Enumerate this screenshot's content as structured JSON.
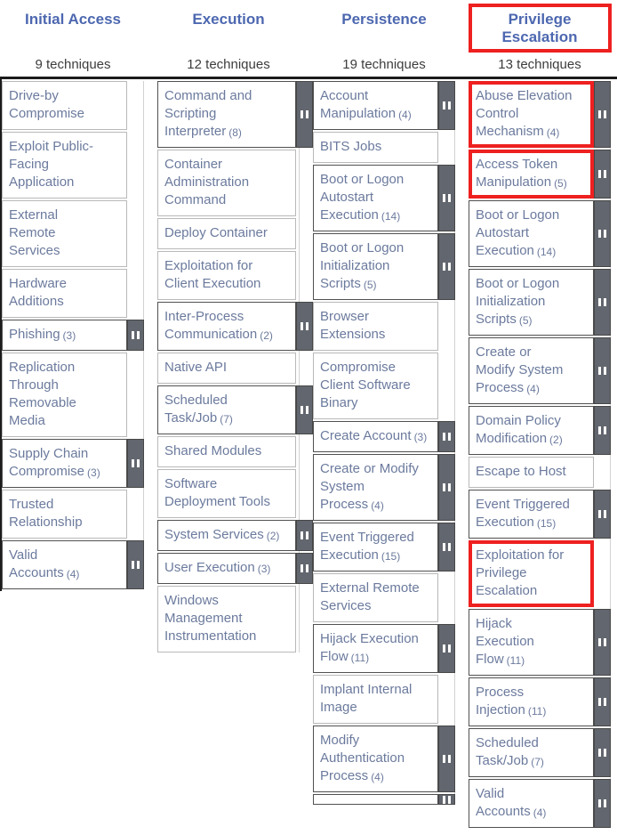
{
  "matrix": {
    "columns": [
      {
        "name": "Initial Access",
        "techniques_count_label": "9 techniques",
        "header_highlighted": false,
        "techniques": [
          {
            "label": "Drive-by Compromise"
          },
          {
            "label": "Exploit Public-Facing Application"
          },
          {
            "label": "External Remote Services"
          },
          {
            "label": "Hardware Additions"
          },
          {
            "label": "Phishing",
            "subtechnique_count": 3
          },
          {
            "label": "Replication Through Removable Media"
          },
          {
            "label": "Supply Chain Compromise",
            "subtechnique_count": 3
          },
          {
            "label": "Trusted Relationship"
          },
          {
            "label": "Valid Accounts",
            "subtechnique_count": 4
          }
        ]
      },
      {
        "name": "Execution",
        "techniques_count_label": "12 techniques",
        "header_highlighted": false,
        "techniques": [
          {
            "label": "Command and Scripting Interpreter",
            "subtechnique_count": 8
          },
          {
            "label": "Container Administration Command"
          },
          {
            "label": "Deploy Container"
          },
          {
            "label": "Exploitation for Client Execution"
          },
          {
            "label": "Inter-Process Communication",
            "subtechnique_count": 2
          },
          {
            "label": "Native API"
          },
          {
            "label": "Scheduled Task/Job",
            "subtechnique_count": 7
          },
          {
            "label": "Shared Modules"
          },
          {
            "label": "Software Deployment Tools"
          },
          {
            "label": "System Services",
            "subtechnique_count": 2
          },
          {
            "label": "User Execution",
            "subtechnique_count": 3
          },
          {
            "label": "Windows Management Instrumentation"
          }
        ]
      },
      {
        "name": "Persistence",
        "techniques_count_label": "19 techniques",
        "header_highlighted": false,
        "techniques": [
          {
            "label": "Account Manipulation",
            "subtechnique_count": 4
          },
          {
            "label": "BITS Jobs"
          },
          {
            "label": "Boot or Logon Autostart Execution",
            "subtechnique_count": 14
          },
          {
            "label": "Boot or Logon Initialization Scripts",
            "subtechnique_count": 5
          },
          {
            "label": "Browser Extensions"
          },
          {
            "label": "Compromise Client Software Binary"
          },
          {
            "label": "Create Account",
            "subtechnique_count": 3
          },
          {
            "label": "Create or Modify System Process",
            "subtechnique_count": 4
          },
          {
            "label": "Event Triggered Execution",
            "subtechnique_count": 15
          },
          {
            "label": "External Remote Services"
          },
          {
            "label": "Hijack Execution Flow",
            "subtechnique_count": 11
          },
          {
            "label": "Implant Internal Image"
          },
          {
            "label": "Modify Authentication Process",
            "subtechnique_count": 4
          },
          {
            "label": "",
            "partial": true,
            "has_subtechniques": true
          }
        ]
      },
      {
        "name": "Privilege Escalation",
        "techniques_count_label": "13 techniques",
        "header_highlighted": true,
        "techniques": [
          {
            "label": "Abuse Elevation Control Mechanism",
            "subtechnique_count": 4,
            "highlighted": true
          },
          {
            "label": "Access Token Manipulation",
            "subtechnique_count": 5,
            "highlighted": true
          },
          {
            "label": "Boot or Logon Autostart Execution",
            "subtechnique_count": 14
          },
          {
            "label": "Boot or Logon Initialization Scripts",
            "subtechnique_count": 5
          },
          {
            "label": "Create or Modify System Process",
            "subtechnique_count": 4
          },
          {
            "label": "Domain Policy Modification",
            "subtechnique_count": 2
          },
          {
            "label": "Escape to Host"
          },
          {
            "label": "Event Triggered Execution",
            "subtechnique_count": 15
          },
          {
            "label": "Exploitation for Privilege Escalation",
            "highlighted": true
          },
          {
            "label": "Hijack Execution Flow",
            "subtechnique_count": 11
          },
          {
            "label": "Process Injection",
            "subtechnique_count": 11
          },
          {
            "label": "Scheduled Task/Job",
            "subtechnique_count": 7
          },
          {
            "label": "Valid Accounts",
            "subtechnique_count": 4
          }
        ]
      }
    ]
  },
  "colors": {
    "header_text": "#4d68b0",
    "count_text": "#3d3d3d",
    "cell_text": "#6b7a9d",
    "highlight_red": "#ee2020",
    "subtechnique_badge_bg": "#62666e",
    "cell_border": "#b9b9b9",
    "badge_cell_border": "#515151",
    "top_line": "#1c1c1c"
  },
  "icons": {
    "subtechniques_icon": "two-vertical-bars"
  }
}
